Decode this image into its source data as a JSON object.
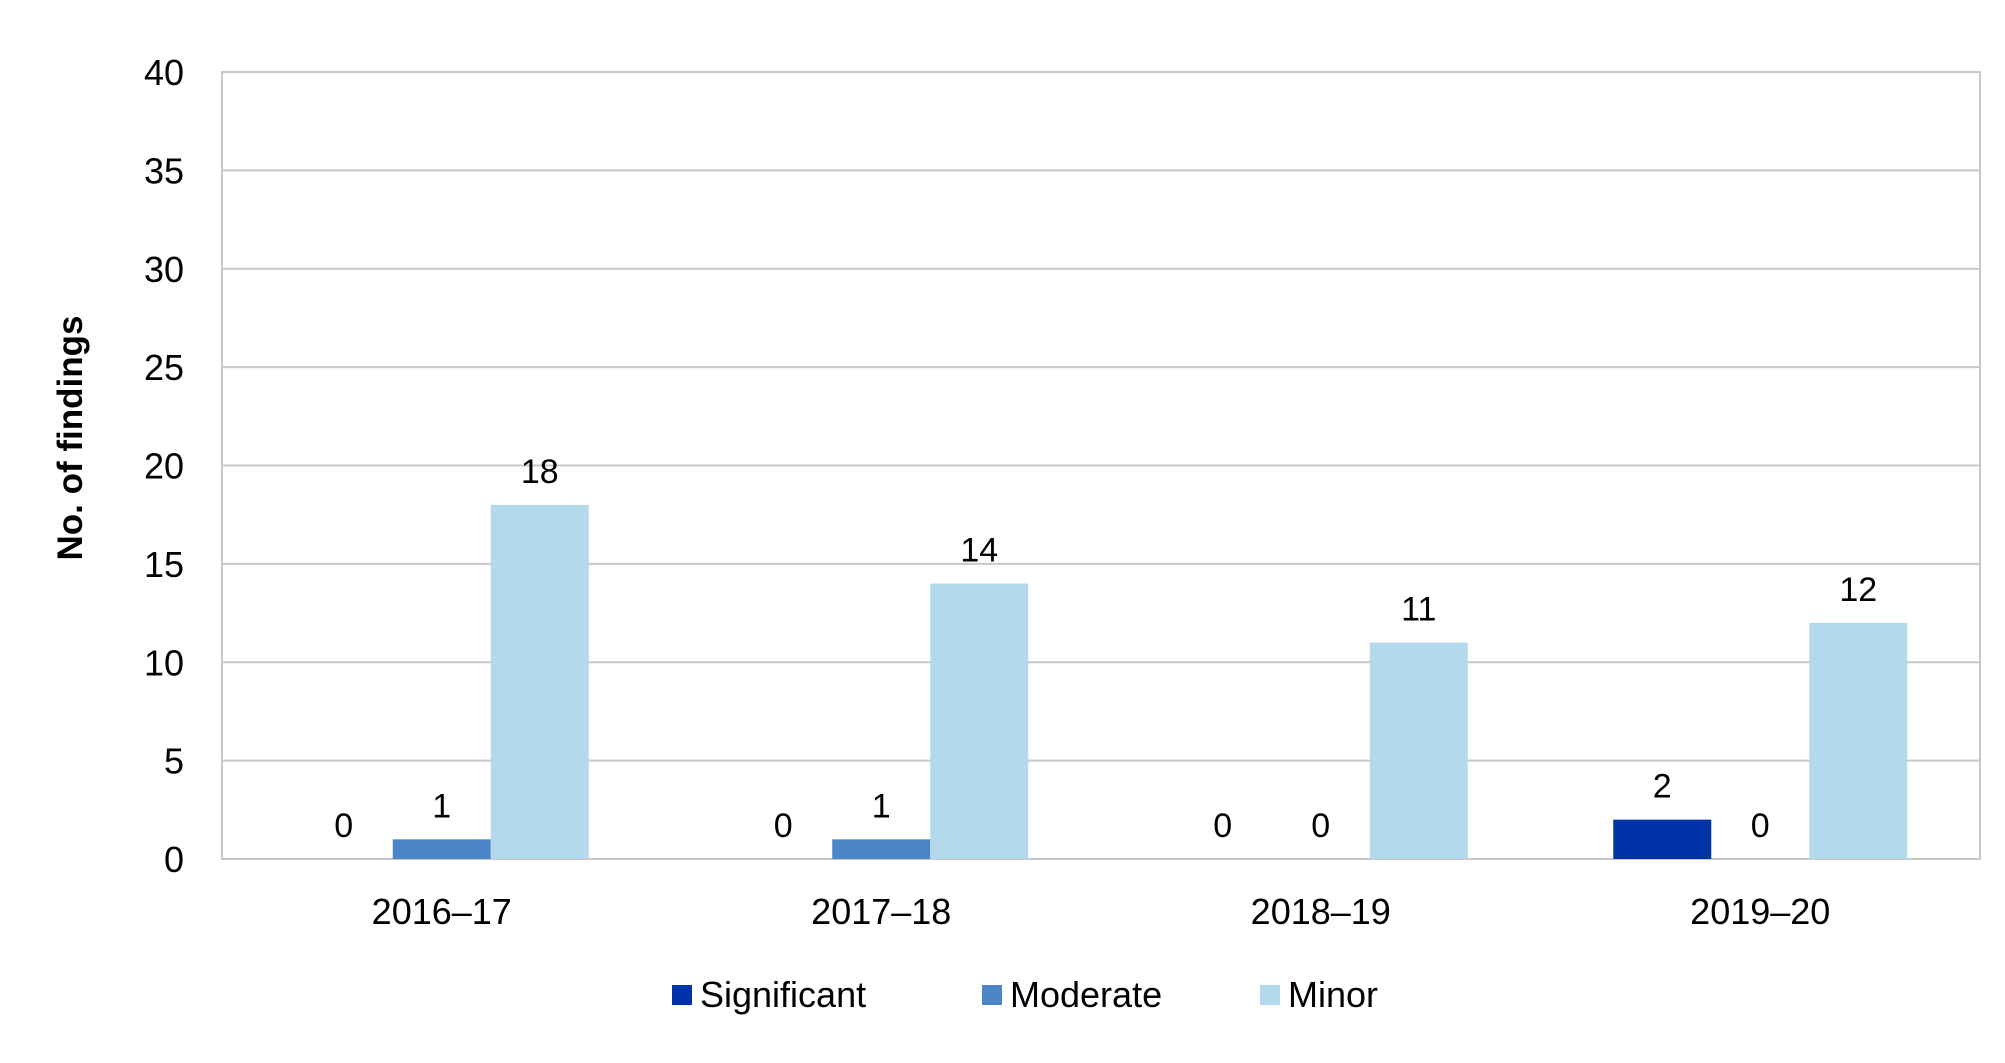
{
  "chart_data": {
    "type": "bar",
    "title": "",
    "xlabel": "",
    "ylabel": "No. of findings",
    "ylim": [
      0,
      40
    ],
    "yticks": [
      0,
      5,
      10,
      15,
      20,
      25,
      30,
      35,
      40
    ],
    "grid": true,
    "legend_position": "bottom",
    "categories": [
      "2016–17",
      "2017–18",
      "2018–19",
      "2019–20"
    ],
    "series": [
      {
        "name": "Significant",
        "color": "#0033A8",
        "values": [
          0,
          0,
          0,
          2
        ]
      },
      {
        "name": "Moderate",
        "color": "#4A86C8",
        "values": [
          1,
          1,
          0,
          0
        ]
      },
      {
        "name": "Minor",
        "color": "#B4D9EC",
        "values": [
          18,
          14,
          11,
          12
        ]
      }
    ]
  }
}
